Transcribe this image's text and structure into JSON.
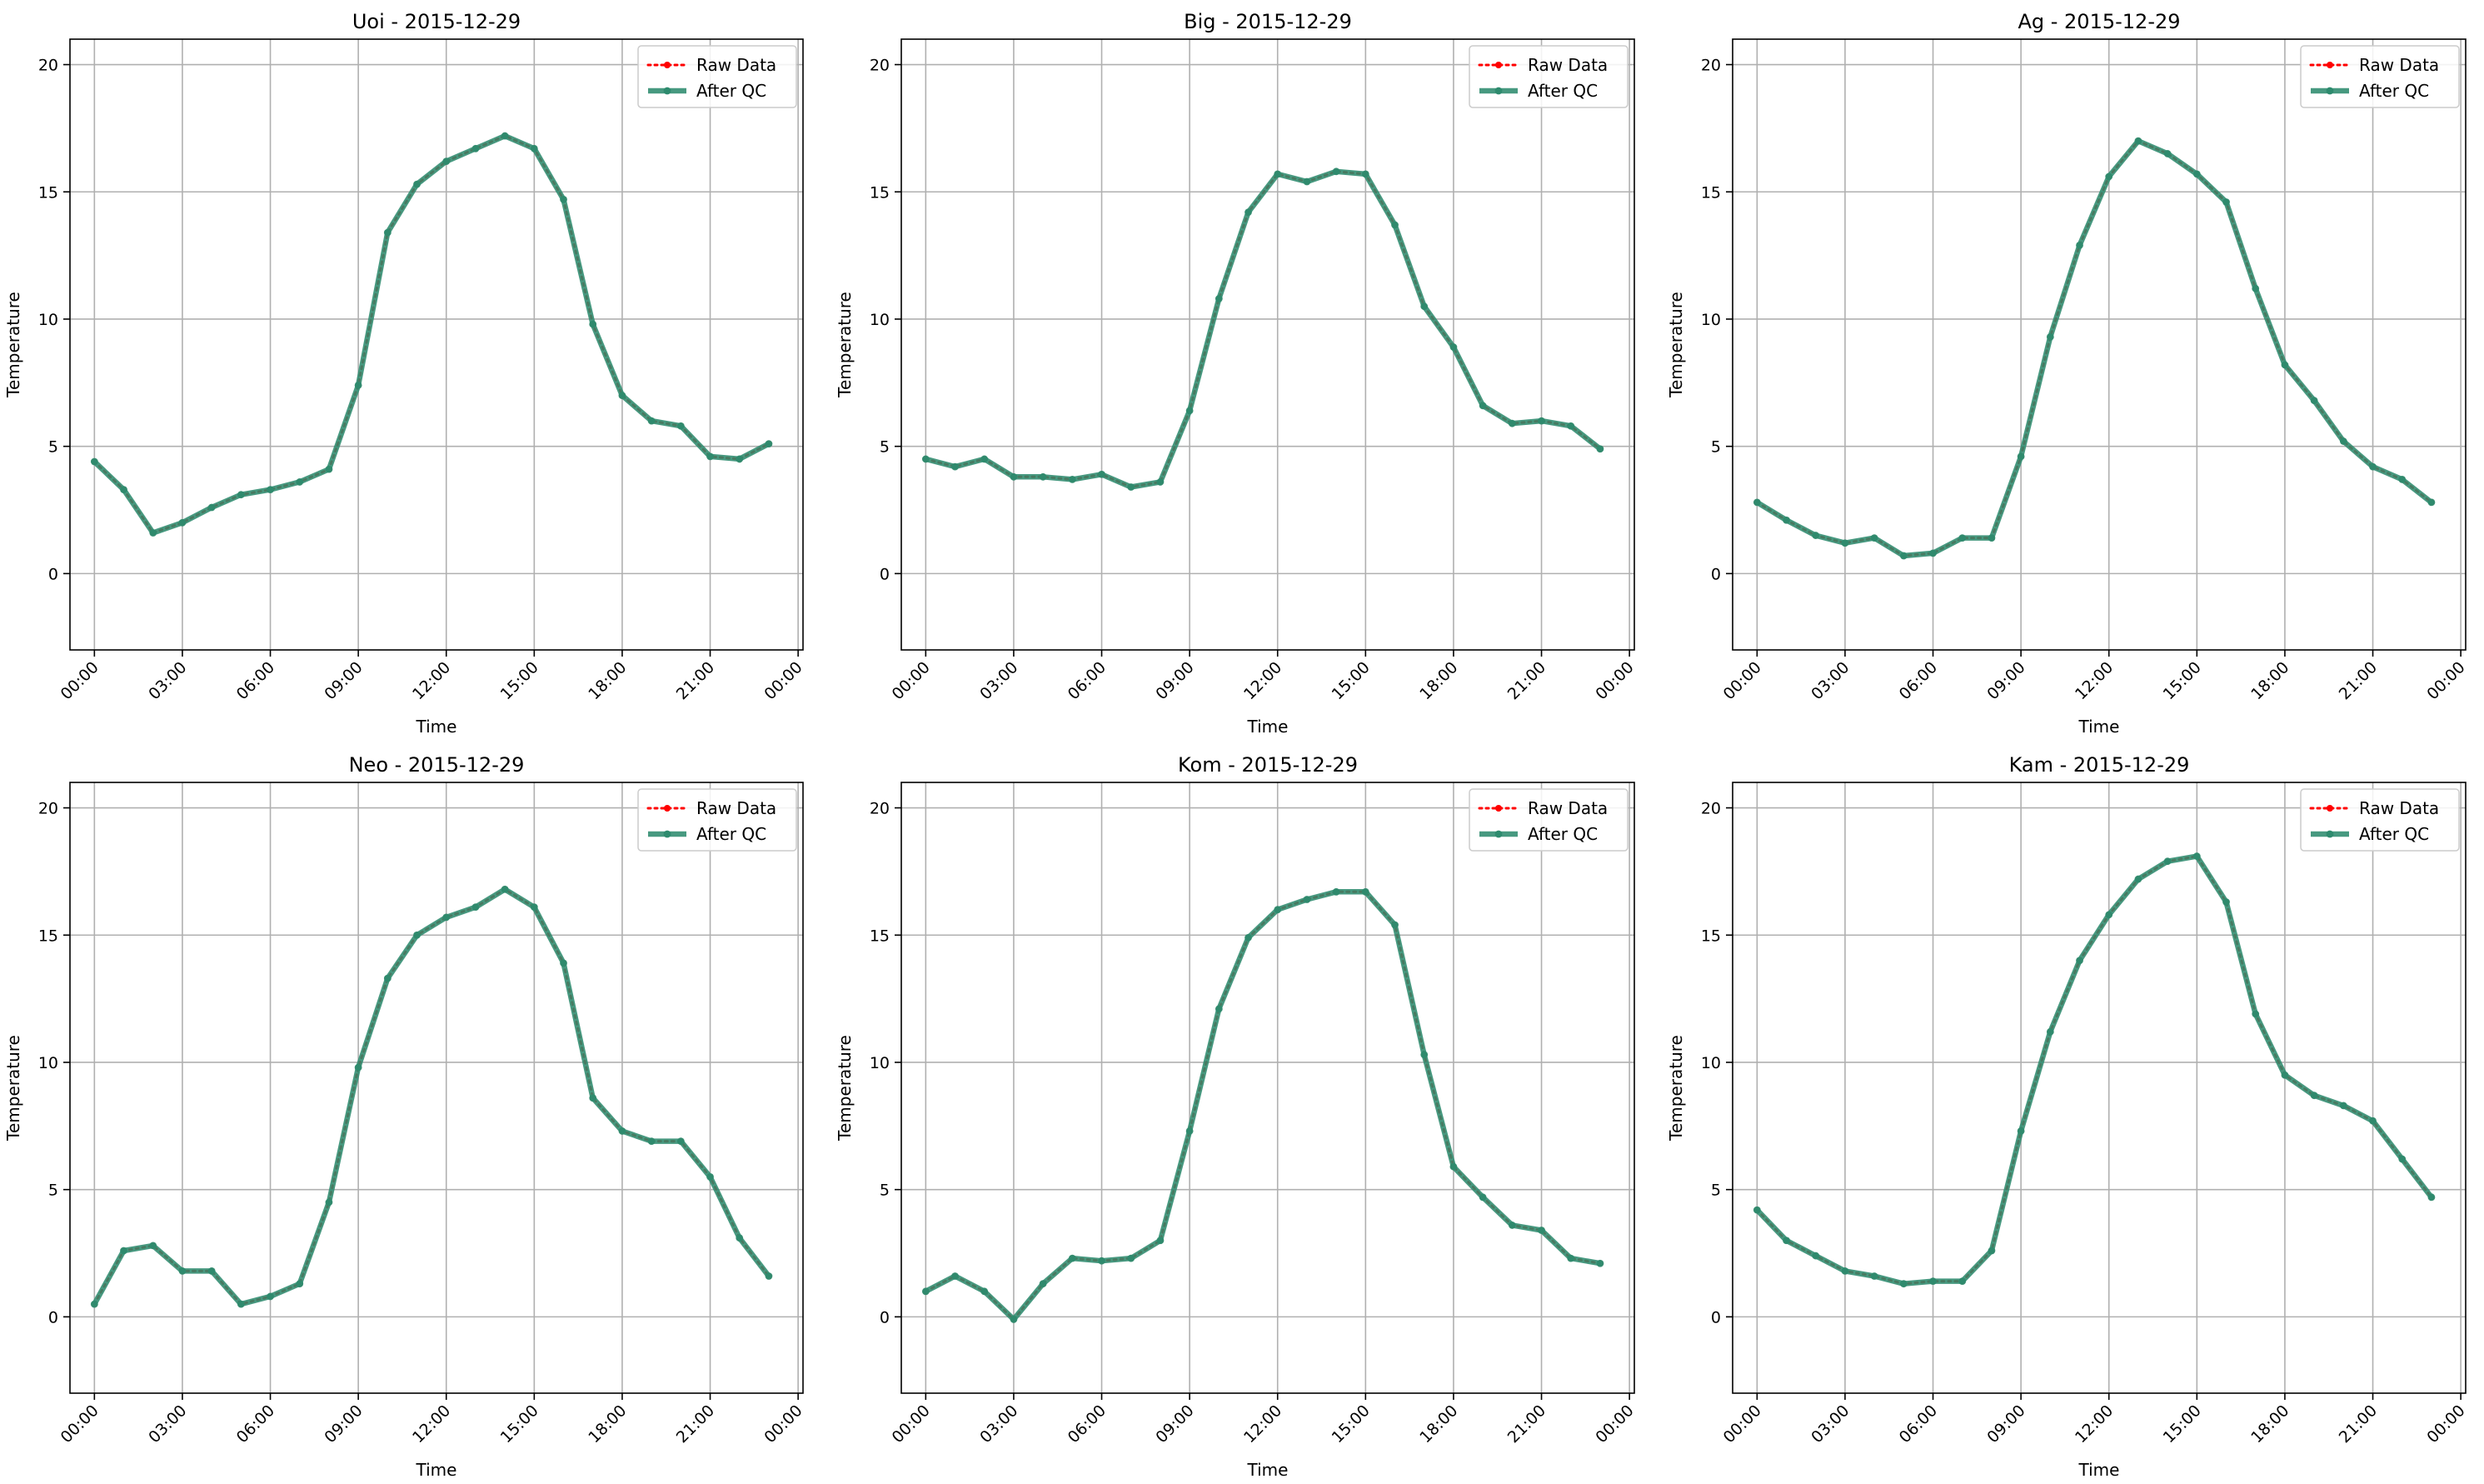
{
  "legend": {
    "raw_label": "Raw Data",
    "qc_label": "After QC"
  },
  "colors": {
    "raw": "#ff0000",
    "qc": "#2e8b6e"
  },
  "chart_data": [
    {
      "type": "line",
      "title": "Uoi - 2015-12-29",
      "xlabel": "Time",
      "ylabel": "Temperature",
      "xlim": [
        "-00:50",
        "24:10"
      ],
      "ylim": [
        -3,
        21
      ],
      "xtick_labels": [
        "00:00",
        "03:00",
        "06:00",
        "09:00",
        "12:00",
        "15:00",
        "18:00",
        "21:00",
        "00:00"
      ],
      "ytick_labels": [
        "0",
        "5",
        "10",
        "15",
        "20"
      ],
      "grid": true,
      "legend_position": "upper right",
      "x": [
        "00:00",
        "01:00",
        "02:00",
        "03:00",
        "04:00",
        "05:00",
        "06:00",
        "07:00",
        "08:00",
        "09:00",
        "10:00",
        "11:00",
        "12:00",
        "13:00",
        "14:00",
        "15:00",
        "16:00",
        "17:00",
        "18:00",
        "19:00",
        "20:00",
        "21:00",
        "22:00",
        "23:00"
      ],
      "series": [
        {
          "name": "Raw Data",
          "values": [
            4.4,
            3.3,
            1.6,
            2.0,
            2.6,
            3.1,
            3.3,
            3.6,
            4.1,
            7.4,
            13.4,
            15.3,
            16.2,
            16.7,
            17.2,
            16.7,
            14.7,
            9.8,
            7.0,
            6.0,
            5.8,
            4.6,
            4.5,
            5.1
          ]
        },
        {
          "name": "After QC",
          "values": [
            4.4,
            3.3,
            1.6,
            2.0,
            2.6,
            3.1,
            3.3,
            3.6,
            4.1,
            7.4,
            13.4,
            15.3,
            16.2,
            16.7,
            17.2,
            16.7,
            14.7,
            9.8,
            7.0,
            6.0,
            5.8,
            4.6,
            4.5,
            5.1
          ]
        }
      ]
    },
    {
      "type": "line",
      "title": "Big - 2015-12-29",
      "xlabel": "Time",
      "ylabel": "Temperature",
      "xlim": [
        "-00:50",
        "24:10"
      ],
      "ylim": [
        -3,
        21
      ],
      "xtick_labels": [
        "00:00",
        "03:00",
        "06:00",
        "09:00",
        "12:00",
        "15:00",
        "18:00",
        "21:00",
        "00:00"
      ],
      "ytick_labels": [
        "0",
        "5",
        "10",
        "15",
        "20"
      ],
      "grid": true,
      "legend_position": "upper right",
      "x": [
        "00:00",
        "01:00",
        "02:00",
        "03:00",
        "04:00",
        "05:00",
        "06:00",
        "07:00",
        "08:00",
        "09:00",
        "10:00",
        "11:00",
        "12:00",
        "13:00",
        "14:00",
        "15:00",
        "16:00",
        "17:00",
        "18:00",
        "19:00",
        "20:00",
        "21:00",
        "22:00",
        "23:00"
      ],
      "series": [
        {
          "name": "Raw Data",
          "values": [
            4.5,
            4.2,
            4.5,
            3.8,
            3.8,
            3.7,
            3.9,
            3.4,
            3.6,
            6.4,
            10.8,
            14.2,
            15.7,
            15.4,
            15.8,
            15.7,
            13.7,
            10.5,
            8.9,
            6.6,
            5.9,
            6.0,
            5.8,
            4.9
          ]
        },
        {
          "name": "After QC",
          "values": [
            4.5,
            4.2,
            4.5,
            3.8,
            3.8,
            3.7,
            3.9,
            3.4,
            3.6,
            6.4,
            10.8,
            14.2,
            15.7,
            15.4,
            15.8,
            15.7,
            13.7,
            10.5,
            8.9,
            6.6,
            5.9,
            6.0,
            5.8,
            4.9
          ]
        }
      ]
    },
    {
      "type": "line",
      "title": "Ag - 2015-12-29",
      "xlabel": "Time",
      "ylabel": "Temperature",
      "xlim": [
        "-00:50",
        "24:10"
      ],
      "ylim": [
        -3,
        21
      ],
      "xtick_labels": [
        "00:00",
        "03:00",
        "06:00",
        "09:00",
        "12:00",
        "15:00",
        "18:00",
        "21:00",
        "00:00"
      ],
      "ytick_labels": [
        "0",
        "5",
        "10",
        "15",
        "20"
      ],
      "grid": true,
      "legend_position": "upper right",
      "x": [
        "00:00",
        "01:00",
        "02:00",
        "03:00",
        "04:00",
        "05:00",
        "06:00",
        "07:00",
        "08:00",
        "09:00",
        "10:00",
        "11:00",
        "12:00",
        "13:00",
        "14:00",
        "15:00",
        "16:00",
        "17:00",
        "18:00",
        "19:00",
        "20:00",
        "21:00",
        "22:00",
        "23:00"
      ],
      "series": [
        {
          "name": "Raw Data",
          "values": [
            2.8,
            2.1,
            1.5,
            1.2,
            1.4,
            0.7,
            0.8,
            1.4,
            1.4,
            4.6,
            9.3,
            12.9,
            15.6,
            17.0,
            16.5,
            15.7,
            14.6,
            11.2,
            8.2,
            6.8,
            5.2,
            4.2,
            3.7,
            2.8
          ]
        },
        {
          "name": "After QC",
          "values": [
            2.8,
            2.1,
            1.5,
            1.2,
            1.4,
            0.7,
            0.8,
            1.4,
            1.4,
            4.6,
            9.3,
            12.9,
            15.6,
            17.0,
            16.5,
            15.7,
            14.6,
            11.2,
            8.2,
            6.8,
            5.2,
            4.2,
            3.7,
            2.8
          ]
        }
      ]
    },
    {
      "type": "line",
      "title": "Neo - 2015-12-29",
      "xlabel": "Time",
      "ylabel": "Temperature",
      "xlim": [
        "-00:50",
        "24:10"
      ],
      "ylim": [
        -3,
        21
      ],
      "xtick_labels": [
        "00:00",
        "03:00",
        "06:00",
        "09:00",
        "12:00",
        "15:00",
        "18:00",
        "21:00",
        "00:00"
      ],
      "ytick_labels": [
        "0",
        "5",
        "10",
        "15",
        "20"
      ],
      "grid": true,
      "legend_position": "upper right",
      "x": [
        "00:00",
        "01:00",
        "02:00",
        "03:00",
        "04:00",
        "05:00",
        "06:00",
        "07:00",
        "08:00",
        "09:00",
        "10:00",
        "11:00",
        "12:00",
        "13:00",
        "14:00",
        "15:00",
        "16:00",
        "17:00",
        "18:00",
        "19:00",
        "20:00",
        "21:00",
        "22:00",
        "23:00"
      ],
      "series": [
        {
          "name": "Raw Data",
          "values": [
            0.5,
            2.6,
            2.8,
            1.8,
            1.8,
            0.5,
            0.8,
            1.3,
            4.5,
            9.8,
            13.3,
            15.0,
            15.7,
            16.1,
            16.8,
            16.1,
            13.9,
            8.6,
            7.3,
            6.9,
            6.9,
            5.5,
            3.1,
            1.6
          ]
        },
        {
          "name": "After QC",
          "values": [
            0.5,
            2.6,
            2.8,
            1.8,
            1.8,
            0.5,
            0.8,
            1.3,
            4.5,
            9.8,
            13.3,
            15.0,
            15.7,
            16.1,
            16.8,
            16.1,
            13.9,
            8.6,
            7.3,
            6.9,
            6.9,
            5.5,
            3.1,
            1.6
          ]
        }
      ]
    },
    {
      "type": "line",
      "title": "Kom - 2015-12-29",
      "xlabel": "Time",
      "ylabel": "Temperature",
      "xlim": [
        "-00:50",
        "24:10"
      ],
      "ylim": [
        -3,
        21
      ],
      "xtick_labels": [
        "00:00",
        "03:00",
        "06:00",
        "09:00",
        "12:00",
        "15:00",
        "18:00",
        "21:00",
        "00:00"
      ],
      "ytick_labels": [
        "0",
        "5",
        "10",
        "15",
        "20"
      ],
      "grid": true,
      "legend_position": "upper right",
      "x": [
        "00:00",
        "01:00",
        "02:00",
        "03:00",
        "04:00",
        "05:00",
        "06:00",
        "07:00",
        "08:00",
        "09:00",
        "10:00",
        "11:00",
        "12:00",
        "13:00",
        "14:00",
        "15:00",
        "16:00",
        "17:00",
        "18:00",
        "19:00",
        "20:00",
        "21:00",
        "22:00",
        "23:00"
      ],
      "series": [
        {
          "name": "Raw Data",
          "values": [
            1.0,
            1.6,
            1.0,
            -0.1,
            1.3,
            2.3,
            2.2,
            2.3,
            3.0,
            7.3,
            12.1,
            14.9,
            16.0,
            16.4,
            16.7,
            16.7,
            15.4,
            10.3,
            5.9,
            4.7,
            3.6,
            3.4,
            2.3,
            2.1
          ]
        },
        {
          "name": "After QC",
          "values": [
            1.0,
            1.6,
            1.0,
            -0.1,
            1.3,
            2.3,
            2.2,
            2.3,
            3.0,
            7.3,
            12.1,
            14.9,
            16.0,
            16.4,
            16.7,
            16.7,
            15.4,
            10.3,
            5.9,
            4.7,
            3.6,
            3.4,
            2.3,
            2.1
          ]
        }
      ]
    },
    {
      "type": "line",
      "title": "Kam - 2015-12-29",
      "xlabel": "Time",
      "ylabel": "Temperature",
      "xlim": [
        "-00:50",
        "24:10"
      ],
      "ylim": [
        -3,
        21
      ],
      "xtick_labels": [
        "00:00",
        "03:00",
        "06:00",
        "09:00",
        "12:00",
        "15:00",
        "18:00",
        "21:00",
        "00:00"
      ],
      "ytick_labels": [
        "0",
        "5",
        "10",
        "15",
        "20"
      ],
      "grid": true,
      "legend_position": "upper right",
      "x": [
        "00:00",
        "01:00",
        "02:00",
        "03:00",
        "04:00",
        "05:00",
        "06:00",
        "07:00",
        "08:00",
        "09:00",
        "10:00",
        "11:00",
        "12:00",
        "13:00",
        "14:00",
        "15:00",
        "16:00",
        "17:00",
        "18:00",
        "19:00",
        "20:00",
        "21:00",
        "22:00",
        "23:00"
      ],
      "series": [
        {
          "name": "Raw Data",
          "values": [
            4.2,
            3.0,
            2.4,
            1.8,
            1.6,
            1.3,
            1.4,
            1.4,
            2.6,
            7.3,
            11.2,
            14.0,
            15.8,
            17.2,
            17.9,
            18.1,
            16.3,
            11.9,
            9.5,
            8.7,
            8.3,
            7.7,
            6.2,
            4.7
          ]
        },
        {
          "name": "After QC",
          "values": [
            4.2,
            3.0,
            2.4,
            1.8,
            1.6,
            1.3,
            1.4,
            1.4,
            2.6,
            7.3,
            11.2,
            14.0,
            15.8,
            17.2,
            17.9,
            18.1,
            16.3,
            11.9,
            9.5,
            8.7,
            8.3,
            7.7,
            6.2,
            4.7
          ]
        }
      ]
    }
  ]
}
